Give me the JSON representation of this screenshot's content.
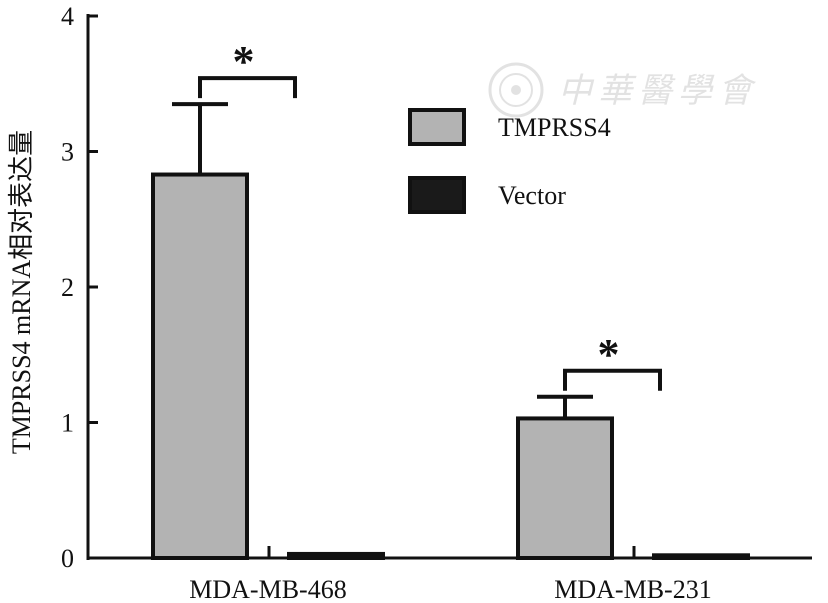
{
  "chart_data": {
    "type": "bar",
    "categories": [
      "MDA-MB-468",
      "MDA-MB-231"
    ],
    "series": [
      {
        "name": "TMPRSS4",
        "values": [
          2.83,
          1.03
        ],
        "errors": [
          0.52,
          0.16
        ],
        "color": "#b3b3b3"
      },
      {
        "name": "Vector",
        "values": [
          0.03,
          0.02
        ],
        "color": "#1a1a1a"
      }
    ],
    "ylabel": "TMPRSS4 mRNA相对表达量",
    "xlabel": "",
    "ylim": [
      0,
      4
    ],
    "yticks": [
      "0",
      "1",
      "2",
      "3",
      "4"
    ],
    "significance": [
      "*",
      "*"
    ],
    "legend": "top-right",
    "grid": false
  },
  "watermark": {
    "text": "中華醫學會"
  }
}
